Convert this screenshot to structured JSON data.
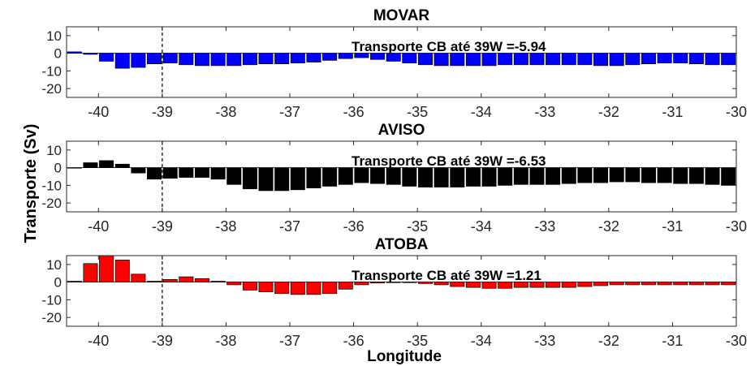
{
  "figure": {
    "ylabel": "Transporte (Sv)",
    "xlabel": "Longitude"
  },
  "chart_data": [
    {
      "type": "bar",
      "title": "MOVAR",
      "annotation": "Transporte CB até 39W =-5.94",
      "color": "#0000ff",
      "xlim": [
        -40.5,
        -30
      ],
      "ylim": [
        -25,
        15
      ],
      "xticks": [
        -40,
        -39,
        -38,
        -37,
        -36,
        -35,
        -34,
        -33,
        -32,
        -31,
        -30
      ],
      "yticks": [
        -20,
        -10,
        0,
        10
      ],
      "ref_line_x": -39,
      "x": [
        -40.5,
        -40.25,
        -40,
        -39.75,
        -39.5,
        -39.25,
        -39,
        -38.75,
        -38.5,
        -38.25,
        -38,
        -37.75,
        -37.5,
        -37.25,
        -37,
        -36.75,
        -36.5,
        -36.25,
        -36,
        -35.75,
        -35.5,
        -35.25,
        -35,
        -34.75,
        -34.5,
        -34.25,
        -34,
        -33.75,
        -33.5,
        -33.25,
        -33,
        -32.75,
        -32.5,
        -32.25,
        -32,
        -31.75,
        -31.5,
        -31.25,
        -31,
        -30.75,
        -30.5,
        -30.25
      ],
      "values": [
        0.8,
        -0.6,
        -4.5,
        -8.5,
        -8.0,
        -6.0,
        -5.5,
        -6.5,
        -7.0,
        -7.0,
        -7.0,
        -6.5,
        -6.0,
        -6.0,
        -5.5,
        -5.0,
        -4.0,
        -3.0,
        -2.5,
        -3.5,
        -4.5,
        -5.5,
        -6.5,
        -7.0,
        -7.0,
        -7.0,
        -7.0,
        -6.5,
        -6.5,
        -6.5,
        -6.5,
        -6.5,
        -6.5,
        -7.0,
        -7.0,
        -6.5,
        -6.0,
        -5.5,
        -5.5,
        -6.0,
        -6.5,
        -6.5
      ]
    },
    {
      "type": "bar",
      "title": "AVISO",
      "annotation": "Transporte CB até 39W =-6.53",
      "color": "#000000",
      "xlim": [
        -40.5,
        -30
      ],
      "ylim": [
        -25,
        15
      ],
      "xticks": [
        -40,
        -39,
        -38,
        -37,
        -36,
        -35,
        -34,
        -33,
        -32,
        -31,
        -30
      ],
      "yticks": [
        -20,
        -10,
        0,
        10
      ],
      "ref_line_x": -39,
      "x": [
        -40.5,
        -40.25,
        -40,
        -39.75,
        -39.5,
        -39.25,
        -39,
        -38.75,
        -38.5,
        -38.25,
        -38,
        -37.75,
        -37.5,
        -37.25,
        -37,
        -36.75,
        -36.5,
        -36.25,
        -36,
        -35.75,
        -35.5,
        -35.25,
        -35,
        -34.75,
        -34.5,
        -34.25,
        -34,
        -33.75,
        -33.5,
        -33.25,
        -33,
        -32.75,
        -32.5,
        -32.25,
        -32,
        -31.75,
        -31.5,
        -31.25,
        -31,
        -30.75,
        -30.5,
        -30.25
      ],
      "values": [
        0,
        2.8,
        4.0,
        2.0,
        -3.0,
        -6.5,
        -6.0,
        -5.5,
        -5.5,
        -6.5,
        -9.5,
        -12.0,
        -13.0,
        -13.0,
        -12.5,
        -11.5,
        -10.5,
        -9.5,
        -8.5,
        -9.0,
        -9.5,
        -10.5,
        -11.0,
        -11.0,
        -11.0,
        -10.5,
        -10.5,
        -10.0,
        -9.5,
        -9.5,
        -9.5,
        -9.0,
        -8.5,
        -8.5,
        -8.0,
        -8.0,
        -8.5,
        -8.5,
        -9.0,
        -9.0,
        -9.5,
        -10.0
      ]
    },
    {
      "type": "bar",
      "title": "ATOBA",
      "annotation": "Transporte CB até 39W =1.21",
      "color": "#ff0000",
      "xlim": [
        -40.5,
        -30
      ],
      "ylim": [
        -25,
        15
      ],
      "xticks": [
        -40,
        -39,
        -38,
        -37,
        -36,
        -35,
        -34,
        -33,
        -32,
        -31,
        -30
      ],
      "yticks": [
        -20,
        -10,
        0,
        10
      ],
      "ref_line_x": -39,
      "x": [
        -40.5,
        -40.25,
        -40,
        -39.75,
        -39.5,
        -39.25,
        -39,
        -38.75,
        -38.5,
        -38.25,
        -38,
        -37.75,
        -37.5,
        -37.25,
        -37,
        -36.75,
        -36.5,
        -36.25,
        -36,
        -35.75,
        -35.5,
        -35.25,
        -35,
        -34.75,
        -34.5,
        -34.25,
        -34,
        -33.75,
        -33.5,
        -33.25,
        -33,
        -32.75,
        -32.5,
        -32.25,
        -32,
        -31.75,
        -31.5,
        -31.25,
        -31,
        -30.75,
        -30.5,
        -30.25
      ],
      "values": [
        0.5,
        10.5,
        15.0,
        12.5,
        4.5,
        0.5,
        1.5,
        3.0,
        2.0,
        0.5,
        -1.5,
        -4.5,
        -5.5,
        -6.5,
        -7.0,
        -7.0,
        -6.5,
        -4.0,
        -1.5,
        -0.5,
        -0.3,
        -0.3,
        -0.8,
        -1.5,
        -2.5,
        -3.0,
        -3.5,
        -3.5,
        -3.0,
        -3.0,
        -3.0,
        -3.0,
        -2.5,
        -2.0,
        -1.5,
        -1.5,
        -1.5,
        -1.5,
        -1.5,
        -1.5,
        -1.5,
        -1.5
      ]
    }
  ]
}
